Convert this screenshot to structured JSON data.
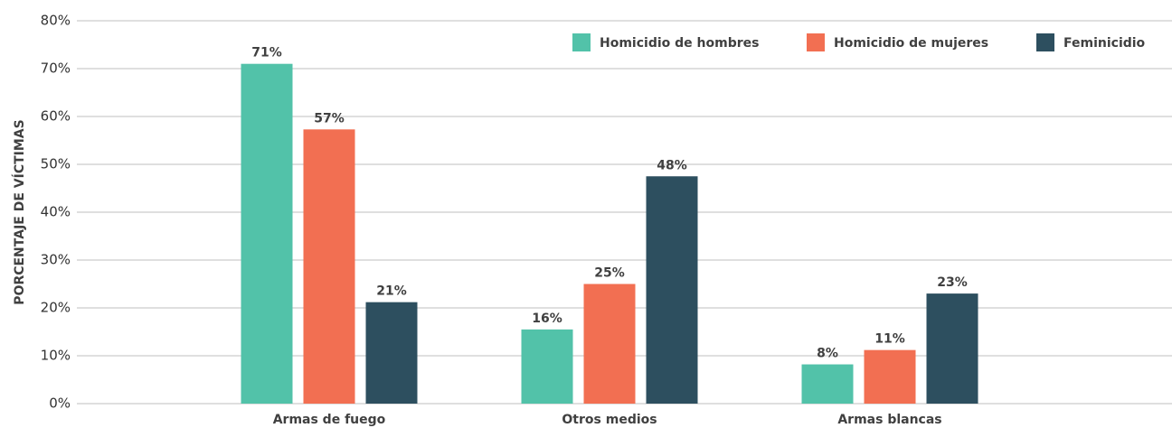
{
  "chart_data": {
    "type": "bar",
    "y_label": "PORCENTAJE DE VÍCTIMAS",
    "categories": [
      "Armas de fuego",
      "Otros medios",
      "Armas blancas"
    ],
    "series": [
      {
        "name": "Homicidio de hombres",
        "color": "#52c2a9",
        "values": [
          71,
          15.5,
          8.2
        ],
        "value_labels": [
          "71%",
          "16%",
          "8%"
        ]
      },
      {
        "name": "Homicidio de mujeres",
        "color": "#f26f52",
        "values": [
          57.3,
          25,
          11.2
        ],
        "value_labels": [
          "57%",
          "25%",
          "11%"
        ]
      },
      {
        "name": "Feminicidio",
        "color": "#2d4f5f",
        "values": [
          21.2,
          47.5,
          23
        ],
        "value_labels": [
          "21%",
          "48%",
          "23%"
        ]
      }
    ],
    "ylim": [
      0,
      80
    ],
    "yticks": [
      {
        "value": 0,
        "label": "0%"
      },
      {
        "value": 10,
        "label": "10%"
      },
      {
        "value": 20,
        "label": "20%"
      },
      {
        "value": 30,
        "label": "30%"
      },
      {
        "value": 40,
        "label": "40%"
      },
      {
        "value": 50,
        "label": "50%"
      },
      {
        "value": 60,
        "label": "60%"
      },
      {
        "value": 70,
        "label": "70%"
      },
      {
        "value": 80,
        "label": "80%"
      }
    ],
    "grid": true,
    "legend": "top-right"
  }
}
